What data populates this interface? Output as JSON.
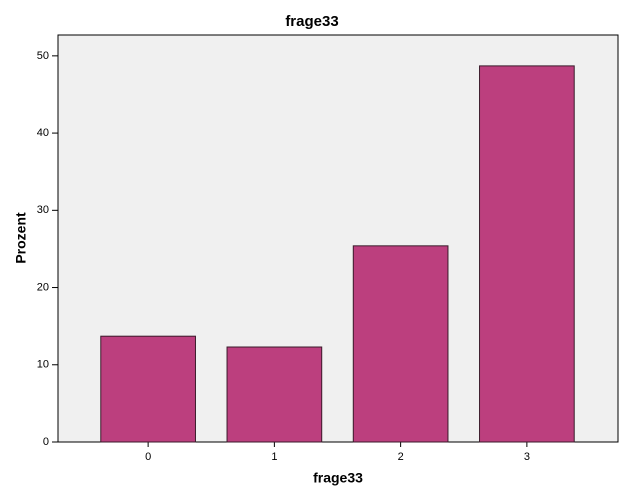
{
  "chart_data": {
    "type": "bar",
    "title": "frage33",
    "x_label": "frage33",
    "y_label": "Prozent",
    "categories": [
      "0",
      "1",
      "2",
      "3"
    ],
    "values": [
      13.7,
      12.3,
      25.4,
      48.7
    ],
    "color": "#bc3f7e",
    "ylim": [
      0,
      52.7
    ],
    "yticks": [
      0,
      10,
      20,
      30,
      40,
      50
    ]
  }
}
